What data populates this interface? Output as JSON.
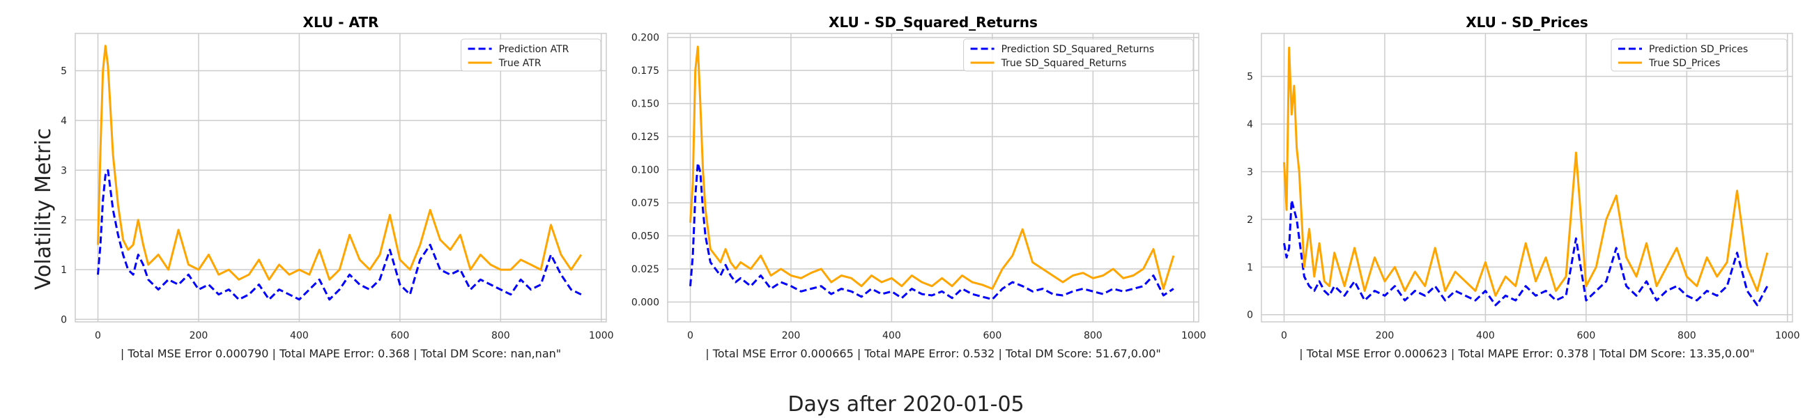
{
  "figure": {
    "ylabel": "Volatility Metric",
    "xlabel": "Days after 2020-01-05"
  },
  "colors": {
    "prediction": "#0000ff",
    "true": "#ffa500",
    "grid": "#cccccc",
    "frame": "#cccccc"
  },
  "chart_data": [
    {
      "type": "line",
      "title": "XLU - ATR",
      "xlabel": "| Total MSE Error 0.000790 | Total MAPE Error: 0.368 | Total DM Score: nan,nan\"",
      "xlim": [
        -45,
        1010
      ],
      "ylim": [
        -0.05,
        5.75
      ],
      "xticks": [
        0,
        200,
        400,
        600,
        800,
        1000
      ],
      "xtick_labels": [
        "0",
        "200",
        "400",
        "600",
        "800",
        "1000"
      ],
      "yticks": [
        0,
        1,
        2,
        3,
        4,
        5
      ],
      "ytick_labels": [
        "0",
        "1",
        "2",
        "3",
        "4",
        "5"
      ],
      "grid": true,
      "legend_position": "top-right",
      "series": [
        {
          "name": "Prediction ATR",
          "style": "dashed",
          "x": [
            0,
            5,
            10,
            15,
            20,
            25,
            30,
            40,
            50,
            60,
            70,
            80,
            90,
            100,
            120,
            140,
            160,
            180,
            200,
            220,
            240,
            260,
            280,
            300,
            320,
            340,
            360,
            380,
            400,
            420,
            440,
            460,
            480,
            500,
            520,
            540,
            560,
            580,
            600,
            620,
            640,
            660,
            680,
            700,
            720,
            740,
            760,
            780,
            800,
            820,
            840,
            860,
            880,
            900,
            920,
            940,
            960
          ],
          "values": [
            0.9,
            1.5,
            2.4,
            2.9,
            3.0,
            2.6,
            2.2,
            1.7,
            1.3,
            1.0,
            0.9,
            1.3,
            1.1,
            0.8,
            0.6,
            0.8,
            0.7,
            0.9,
            0.6,
            0.7,
            0.5,
            0.6,
            0.4,
            0.5,
            0.7,
            0.4,
            0.6,
            0.5,
            0.4,
            0.6,
            0.8,
            0.4,
            0.6,
            0.9,
            0.7,
            0.6,
            0.8,
            1.4,
            0.7,
            0.5,
            1.2,
            1.5,
            1.0,
            0.9,
            1.0,
            0.6,
            0.8,
            0.7,
            0.6,
            0.5,
            0.8,
            0.6,
            0.7,
            1.3,
            0.9,
            0.6,
            0.5
          ]
        },
        {
          "name": "True ATR",
          "style": "solid",
          "x": [
            0,
            5,
            10,
            15,
            20,
            25,
            30,
            40,
            50,
            60,
            70,
            80,
            90,
            100,
            120,
            140,
            160,
            180,
            200,
            220,
            240,
            260,
            280,
            300,
            320,
            340,
            360,
            380,
            400,
            420,
            440,
            460,
            480,
            500,
            520,
            540,
            560,
            580,
            600,
            620,
            640,
            660,
            680,
            700,
            720,
            740,
            760,
            780,
            800,
            820,
            840,
            860,
            880,
            900,
            920,
            940,
            960
          ],
          "values": [
            1.5,
            3.4,
            5.0,
            5.5,
            5.1,
            4.2,
            3.3,
            2.3,
            1.6,
            1.4,
            1.5,
            2.0,
            1.5,
            1.1,
            1.3,
            1.0,
            1.8,
            1.1,
            1.0,
            1.3,
            0.9,
            1.0,
            0.8,
            0.9,
            1.2,
            0.8,
            1.1,
            0.9,
            1.0,
            0.9,
            1.4,
            0.8,
            1.0,
            1.7,
            1.2,
            1.0,
            1.3,
            2.1,
            1.2,
            1.0,
            1.5,
            2.2,
            1.6,
            1.4,
            1.7,
            1.0,
            1.3,
            1.1,
            1.0,
            1.0,
            1.2,
            1.1,
            1.0,
            1.9,
            1.3,
            1.0,
            1.3
          ]
        }
      ]
    },
    {
      "type": "line",
      "title": "XLU - SD_Squared_Returns",
      "xlabel": "| Total MSE Error 0.000665 | Total MAPE Error: 0.532 | Total DM Score: 51.67,0.00\"",
      "xlim": [
        -45,
        1010
      ],
      "ylim": [
        -0.015,
        0.203
      ],
      "xticks": [
        0,
        200,
        400,
        600,
        800,
        1000
      ],
      "xtick_labels": [
        "0",
        "200",
        "400",
        "600",
        "800",
        "1000"
      ],
      "yticks": [
        0,
        0.025,
        0.05,
        0.075,
        0.1,
        0.125,
        0.15,
        0.175,
        0.2
      ],
      "ytick_labels": [
        "0.000",
        "0.025",
        "0.050",
        "0.075",
        "0.100",
        "0.125",
        "0.150",
        "0.175",
        "0.200"
      ],
      "grid": true,
      "legend_position": "top-right",
      "series": [
        {
          "name": "Prediction SD_Squared_Returns",
          "style": "dashed",
          "x": [
            0,
            5,
            10,
            15,
            20,
            25,
            30,
            40,
            50,
            60,
            70,
            80,
            90,
            100,
            120,
            140,
            160,
            180,
            200,
            220,
            240,
            260,
            280,
            300,
            320,
            340,
            360,
            380,
            400,
            420,
            440,
            460,
            480,
            500,
            520,
            540,
            560,
            580,
            600,
            620,
            640,
            660,
            680,
            700,
            720,
            740,
            760,
            780,
            800,
            820,
            840,
            860,
            880,
            900,
            920,
            940,
            960
          ],
          "values": [
            0.012,
            0.035,
            0.08,
            0.105,
            0.098,
            0.07,
            0.05,
            0.03,
            0.025,
            0.02,
            0.028,
            0.02,
            0.015,
            0.018,
            0.012,
            0.02,
            0.01,
            0.015,
            0.012,
            0.008,
            0.01,
            0.012,
            0.006,
            0.01,
            0.008,
            0.004,
            0.01,
            0.006,
            0.008,
            0.003,
            0.01,
            0.006,
            0.005,
            0.008,
            0.003,
            0.01,
            0.006,
            0.004,
            0.002,
            0.01,
            0.015,
            0.012,
            0.008,
            0.01,
            0.006,
            0.005,
            0.008,
            0.01,
            0.008,
            0.006,
            0.01,
            0.008,
            0.01,
            0.012,
            0.02,
            0.005,
            0.01
          ]
        },
        {
          "name": "True SD_Squared_Returns",
          "style": "solid",
          "x": [
            0,
            5,
            10,
            15,
            20,
            25,
            30,
            40,
            50,
            60,
            70,
            80,
            90,
            100,
            120,
            140,
            160,
            180,
            200,
            220,
            240,
            260,
            280,
            300,
            320,
            340,
            360,
            380,
            400,
            420,
            440,
            460,
            480,
            500,
            520,
            540,
            560,
            580,
            600,
            620,
            640,
            660,
            680,
            700,
            720,
            740,
            760,
            780,
            800,
            820,
            840,
            860,
            880,
            900,
            920,
            940,
            960
          ],
          "values": [
            0.06,
            0.09,
            0.175,
            0.193,
            0.15,
            0.1,
            0.07,
            0.04,
            0.035,
            0.03,
            0.04,
            0.03,
            0.025,
            0.03,
            0.025,
            0.035,
            0.02,
            0.025,
            0.02,
            0.018,
            0.022,
            0.025,
            0.015,
            0.02,
            0.018,
            0.012,
            0.02,
            0.015,
            0.018,
            0.012,
            0.02,
            0.015,
            0.012,
            0.018,
            0.012,
            0.02,
            0.015,
            0.013,
            0.01,
            0.025,
            0.035,
            0.055,
            0.03,
            0.025,
            0.02,
            0.015,
            0.02,
            0.022,
            0.018,
            0.02,
            0.025,
            0.018,
            0.02,
            0.025,
            0.04,
            0.01,
            0.035
          ]
        }
      ]
    },
    {
      "type": "line",
      "title": "XLU - SD_Prices",
      "xlabel": "| Total MSE Error 0.000623 | Total MAPE Error: 0.378 | Total DM Score: 13.35,0.00\"",
      "xlim": [
        -45,
        1010
      ],
      "ylim": [
        -0.15,
        5.9
      ],
      "xticks": [
        0,
        200,
        400,
        600,
        800,
        1000
      ],
      "xtick_labels": [
        "0",
        "200",
        "400",
        "600",
        "800",
        "1000"
      ],
      "yticks": [
        0,
        1,
        2,
        3,
        4,
        5
      ],
      "ytick_labels": [
        "0",
        "1",
        "2",
        "3",
        "4",
        "5"
      ],
      "grid": true,
      "legend_position": "top-right",
      "series": [
        {
          "name": "Prediction SD_Prices",
          "style": "dashed",
          "x": [
            0,
            5,
            10,
            15,
            20,
            25,
            30,
            40,
            50,
            60,
            70,
            80,
            90,
            100,
            120,
            140,
            160,
            180,
            200,
            220,
            240,
            260,
            280,
            300,
            320,
            340,
            360,
            380,
            400,
            420,
            440,
            460,
            480,
            500,
            520,
            540,
            560,
            580,
            600,
            620,
            640,
            660,
            680,
            700,
            720,
            740,
            760,
            780,
            800,
            820,
            840,
            860,
            880,
            900,
            920,
            940,
            960
          ],
          "values": [
            1.5,
            1.2,
            1.4,
            2.4,
            2.2,
            2.0,
            1.6,
            0.8,
            0.6,
            0.5,
            0.7,
            0.5,
            0.4,
            0.6,
            0.4,
            0.7,
            0.3,
            0.5,
            0.4,
            0.6,
            0.3,
            0.5,
            0.4,
            0.6,
            0.3,
            0.5,
            0.4,
            0.3,
            0.5,
            0.2,
            0.4,
            0.3,
            0.6,
            0.4,
            0.5,
            0.3,
            0.4,
            1.6,
            0.3,
            0.5,
            0.7,
            1.4,
            0.6,
            0.4,
            0.7,
            0.3,
            0.5,
            0.6,
            0.4,
            0.3,
            0.5,
            0.4,
            0.6,
            1.3,
            0.5,
            0.2,
            0.6
          ]
        },
        {
          "name": "True SD_Prices",
          "style": "solid",
          "x": [
            0,
            5,
            10,
            15,
            20,
            25,
            30,
            40,
            50,
            60,
            70,
            80,
            90,
            100,
            120,
            140,
            160,
            180,
            200,
            220,
            240,
            260,
            280,
            300,
            320,
            340,
            360,
            380,
            400,
            420,
            440,
            460,
            480,
            500,
            520,
            540,
            560,
            580,
            600,
            620,
            640,
            660,
            680,
            700,
            720,
            740,
            760,
            780,
            800,
            820,
            840,
            860,
            880,
            900,
            920,
            940,
            960
          ],
          "values": [
            3.2,
            2.2,
            5.6,
            4.2,
            4.8,
            3.5,
            3.0,
            1.0,
            1.8,
            0.8,
            1.5,
            0.7,
            0.6,
            1.3,
            0.6,
            1.4,
            0.5,
            1.2,
            0.7,
            1.0,
            0.5,
            0.9,
            0.6,
            1.4,
            0.5,
            0.9,
            0.7,
            0.5,
            1.1,
            0.4,
            0.8,
            0.6,
            1.5,
            0.7,
            1.2,
            0.5,
            0.8,
            3.4,
            0.6,
            1.0,
            2.0,
            2.5,
            1.2,
            0.8,
            1.5,
            0.6,
            1.0,
            1.4,
            0.8,
            0.6,
            1.2,
            0.8,
            1.1,
            2.6,
            1.0,
            0.5,
            1.3
          ]
        }
      ]
    }
  ]
}
